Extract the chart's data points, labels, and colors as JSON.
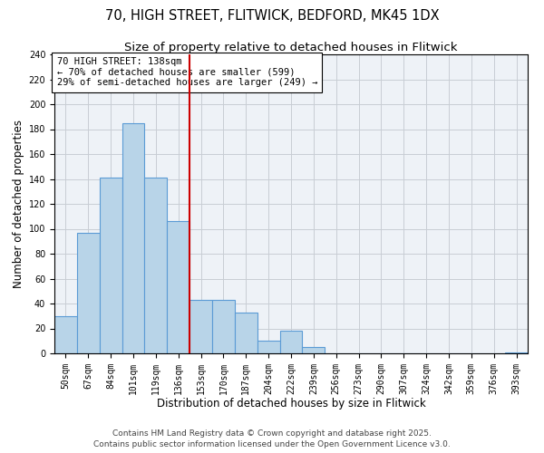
{
  "title": "70, HIGH STREET, FLITWICK, BEDFORD, MK45 1DX",
  "subtitle": "Size of property relative to detached houses in Flitwick",
  "xlabel": "Distribution of detached houses by size in Flitwick",
  "ylabel": "Number of detached properties",
  "bin_labels": [
    "50sqm",
    "67sqm",
    "84sqm",
    "101sqm",
    "119sqm",
    "136sqm",
    "153sqm",
    "170sqm",
    "187sqm",
    "204sqm",
    "222sqm",
    "239sqm",
    "256sqm",
    "273sqm",
    "290sqm",
    "307sqm",
    "324sqm",
    "342sqm",
    "359sqm",
    "376sqm",
    "393sqm"
  ],
  "bar_values": [
    30,
    97,
    141,
    185,
    141,
    106,
    43,
    43,
    33,
    10,
    18,
    5,
    0,
    0,
    0,
    0,
    0,
    0,
    0,
    0,
    1
  ],
  "bar_color": "#b8d4e8",
  "bar_edgecolor": "#5b9bd5",
  "vline_color": "#cc0000",
  "annotation_title": "70 HIGH STREET: 138sqm",
  "annotation_line1": "← 70% of detached houses are smaller (599)",
  "annotation_line2": "29% of semi-detached houses are larger (249) →",
  "ylim": [
    0,
    240
  ],
  "yticks": [
    0,
    20,
    40,
    60,
    80,
    100,
    120,
    140,
    160,
    180,
    200,
    220,
    240
  ],
  "footer_line1": "Contains HM Land Registry data © Crown copyright and database right 2025.",
  "footer_line2": "Contains public sector information licensed under the Open Government Licence v3.0.",
  "background_color": "#eef2f7",
  "grid_color": "#c8cdd4",
  "title_fontsize": 10.5,
  "subtitle_fontsize": 9.5,
  "axis_label_fontsize": 8.5,
  "tick_fontsize": 7,
  "footer_fontsize": 6.5,
  "annotation_fontsize": 7.5
}
